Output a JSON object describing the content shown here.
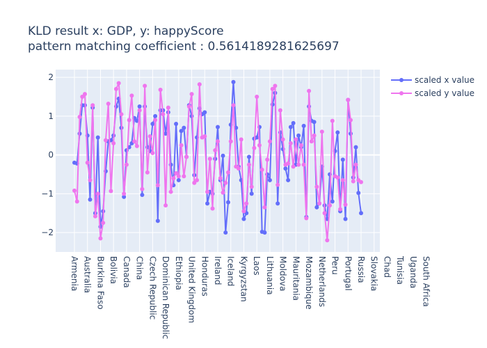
{
  "chart_data": {
    "type": "line",
    "title_line1": "KLD result x: GDP, y: happyScore",
    "title_line2": "pattern matching coefficient : 0.5614189281625697",
    "ylim": [
      -2.5,
      2.2
    ],
    "y_ticks": [
      2,
      1,
      0,
      -1,
      -2
    ],
    "y_tick_labels": [
      "2",
      "1",
      "0",
      "−1",
      "−2"
    ],
    "x_tick_labels": [
      "Armenia",
      "Australia",
      "Burkina Faso",
      "Bolivia",
      "Canada",
      "China",
      "Czech Republic",
      "Dominican Republic",
      "Ethiopia",
      "United Kingdom",
      "Honduras",
      "Ireland",
      "Iceland",
      "Kyrgyzstan",
      "Laos",
      "Lithuania",
      "Moldova",
      "Mauritania",
      "Mozambique",
      "Netherlands",
      "Peru",
      "Portugal",
      "Russia",
      "Slovakia",
      "Chad",
      "Tunisia",
      "Uganda",
      "South Africa"
    ],
    "x_tick_positions": [
      0,
      5,
      10,
      15,
      20,
      25,
      30,
      35,
      40,
      45,
      50,
      55,
      60,
      65,
      70,
      75,
      80,
      85,
      90,
      95,
      100,
      105,
      110,
      115,
      120,
      125,
      130,
      135
    ],
    "grid": true,
    "legend_position": "top-right",
    "series": [
      {
        "name": "scaled x value",
        "color": "#636efa",
        "values": [
          -0.2,
          -0.22,
          0.55,
          1.28,
          1.28,
          0.5,
          -1.15,
          1.22,
          -1.5,
          0.45,
          -1.85,
          -1.45,
          -0.42,
          0.35,
          0.38,
          0.5,
          1.25,
          1.45,
          0.7,
          -1.08,
          0.12,
          0.2,
          0.3,
          0.95,
          0.88,
          1.25,
          -1.03,
          1.25,
          0.2,
          0.1,
          0.8,
          1.0,
          -1.7,
          1.15,
          1.15,
          0.55,
          1.1,
          -0.25,
          -0.78,
          0.8,
          -0.65,
          0.62,
          0.7,
          -0.05,
          1.28,
          1.0,
          -0.52,
          0.45,
          1.2,
          1.05,
          1.1,
          -1.25,
          -0.95,
          -1.0,
          -0.1,
          0.72,
          -0.65,
          -0.02,
          -2.0,
          -1.22,
          0.78,
          1.88,
          0.7,
          -0.3,
          -0.65,
          -1.65,
          -1.5,
          -0.05,
          -1.0,
          0.42,
          0.45,
          0.72,
          -1.98,
          -2.0,
          -0.5,
          -0.65,
          1.3,
          1.6,
          -1.25,
          0.58,
          0.15,
          -0.35,
          -0.65,
          0.72,
          0.82,
          -0.25,
          0.5,
          0.2,
          0.75,
          -1.6,
          1.25,
          0.88,
          0.85,
          -1.35,
          -1.25,
          -0.3,
          -1.3,
          -1.65,
          -0.5,
          -1.2,
          0.1,
          0.58,
          -1.45,
          -0.12,
          -1.65,
          1.42,
          0.55,
          -0.58,
          0.2,
          -0.98,
          -1.5
        ]
      },
      {
        "name": "scaled y value",
        "color": "#ef75ee",
        "values": [
          -0.92,
          -1.2,
          0.98,
          1.5,
          1.57,
          -0.2,
          -0.65,
          1.28,
          -1.58,
          -1.0,
          -2.15,
          -1.75,
          0.38,
          1.32,
          -0.93,
          0.3,
          1.7,
          1.85,
          1.05,
          -1.0,
          -0.25,
          0.9,
          1.53,
          0.35,
          0.23,
          1.15,
          -0.88,
          1.78,
          -0.45,
          0.48,
          0.05,
          0.9,
          -0.78,
          1.68,
          1.05,
          -1.3,
          1.22,
          -0.95,
          -0.6,
          -0.47,
          -0.55,
          0.25,
          -0.55,
          -0.05,
          1.25,
          1.57,
          -0.72,
          -0.65,
          1.82,
          0.45,
          0.48,
          -0.95,
          -0.1,
          -1.38,
          0.12,
          0.35,
          -0.6,
          -0.97,
          -0.72,
          -0.45,
          0.35,
          1.28,
          -0.3,
          -0.35,
          0.4,
          -1.45,
          -1.25,
          -0.25,
          -0.82,
          0.18,
          1.5,
          0.25,
          -0.38,
          -1.35,
          -0.12,
          0.35,
          1.7,
          1.78,
          -0.77,
          1.15,
          0.4,
          -0.25,
          -0.22,
          0.3,
          -0.3,
          0.4,
          -0.25,
          0.25,
          -0.25,
          -1.63,
          1.65,
          0.35,
          0.5,
          -0.82,
          -1.25,
          0.6,
          -1.5,
          -2.2,
          -1.3,
          0.88,
          -0.55,
          -0.58,
          -1.4,
          -0.65,
          -1.28,
          1.42,
          0.9,
          -0.68,
          -0.25,
          -0.65,
          -0.7
        ]
      }
    ]
  }
}
